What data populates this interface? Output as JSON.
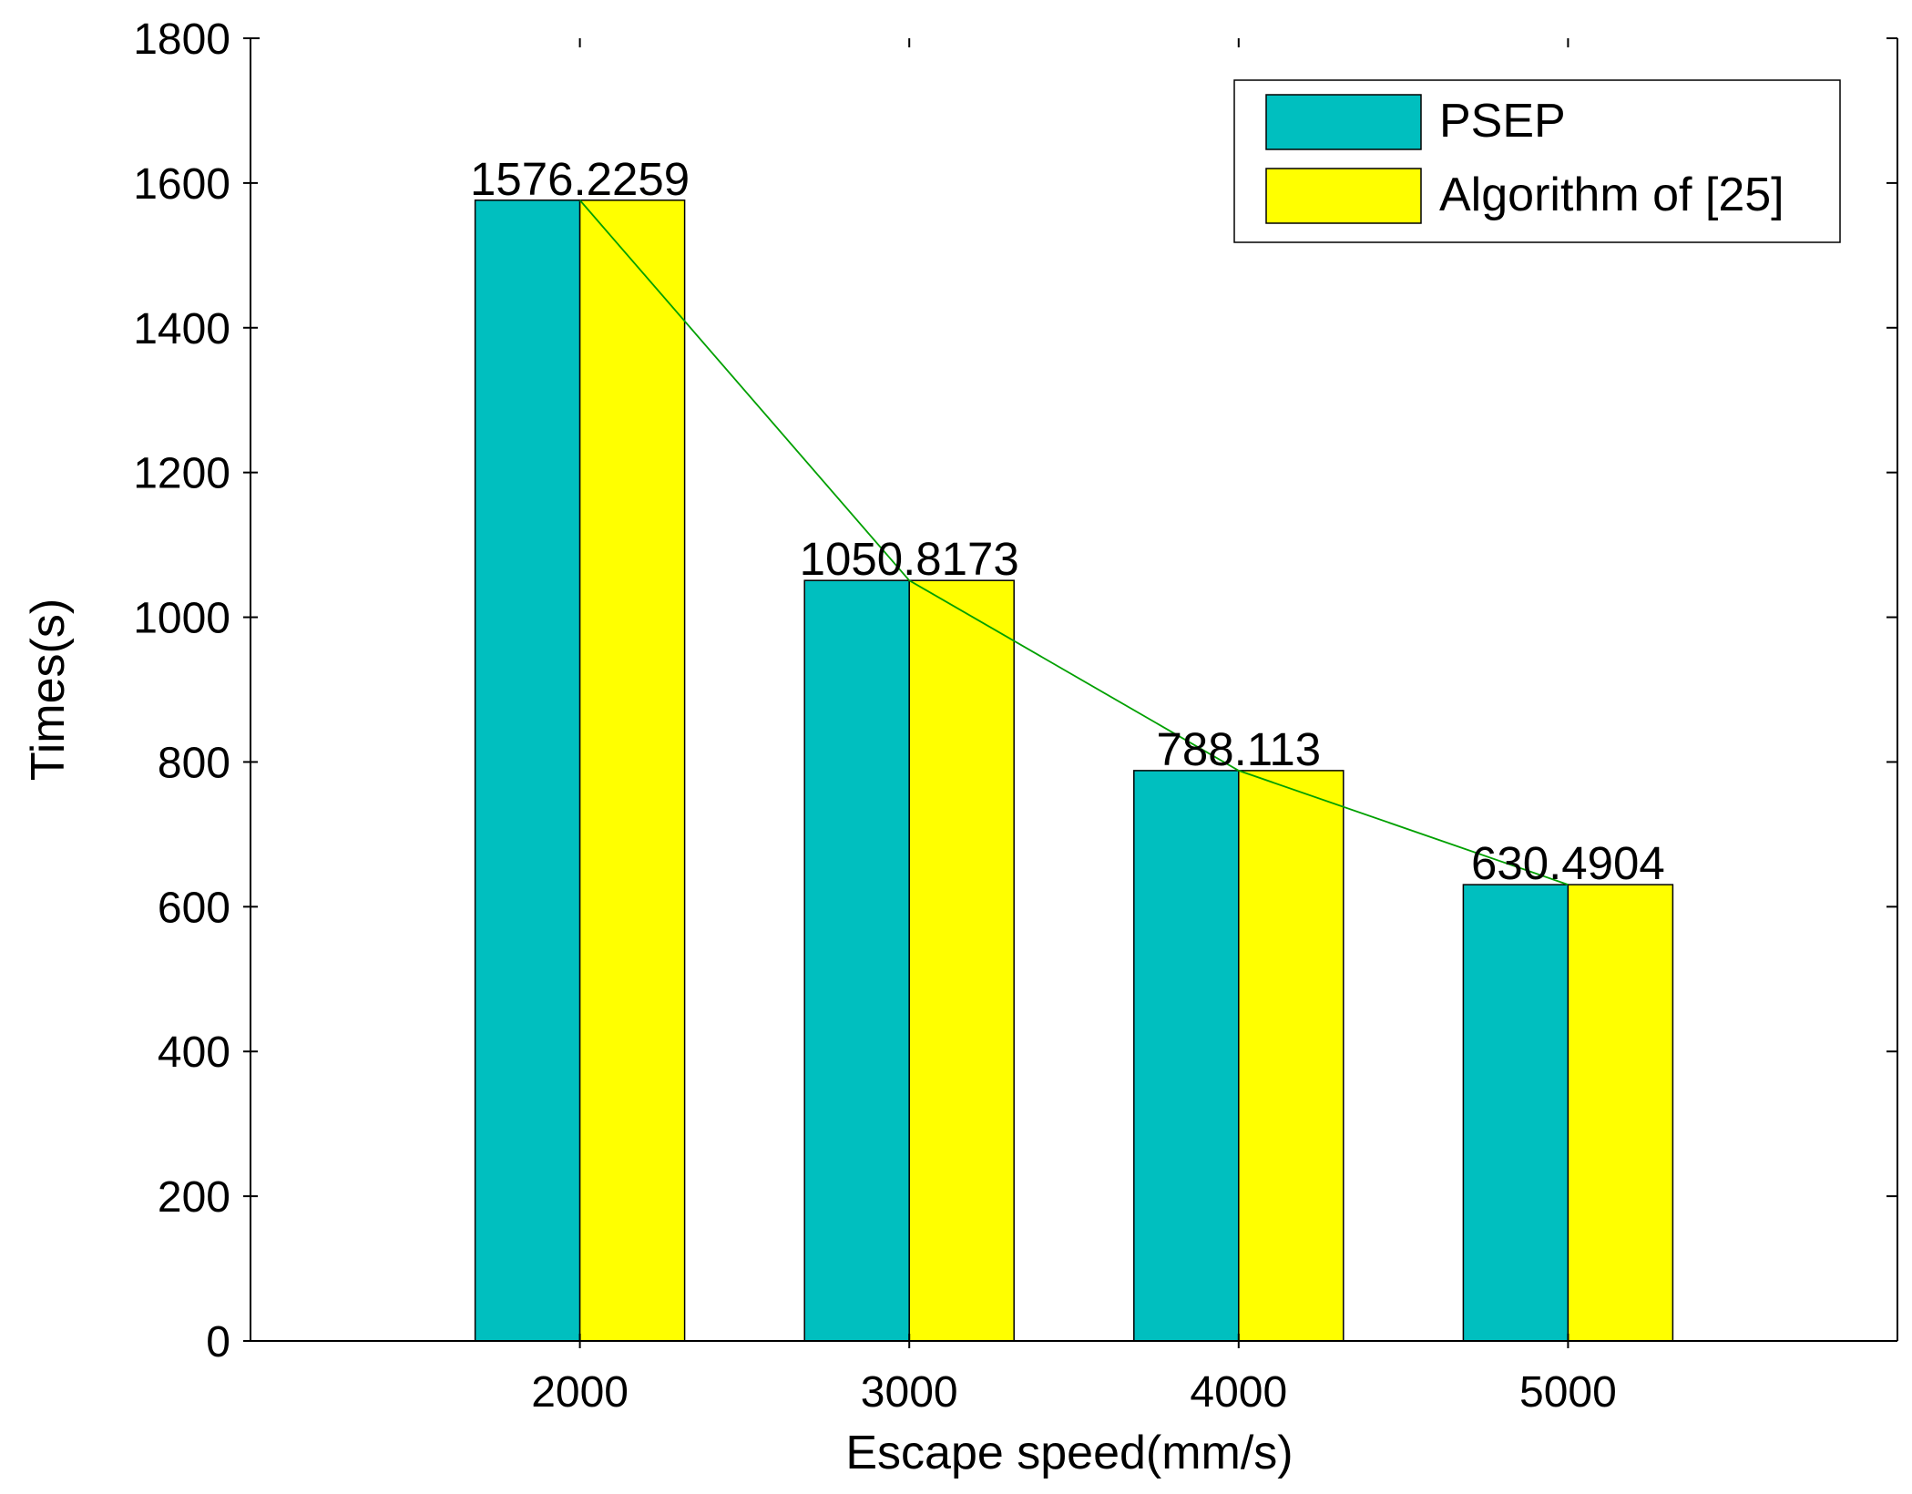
{
  "chart_data": {
    "type": "bar",
    "title": "",
    "xlabel": "Escape speed(mm/s)",
    "ylabel": "Times(s)",
    "categories": [
      "2000",
      "3000",
      "4000",
      "5000"
    ],
    "ylim": [
      0,
      1800
    ],
    "yticks": [
      0,
      200,
      400,
      600,
      800,
      1000,
      1200,
      1400,
      1600,
      1800
    ],
    "ytick_labels": [
      "0",
      "200",
      "400",
      "600",
      "800",
      "1000",
      "1200",
      "1400",
      "1600",
      "1800"
    ],
    "series": [
      {
        "name": "PSEP",
        "color": "#00BFBF",
        "values": [
          1576.2259,
          1050.8173,
          788.113,
          630.4904
        ]
      },
      {
        "name": "Algorithm of [25]",
        "color": "#FFFF00",
        "values": [
          1576.2259,
          1050.8173,
          788.113,
          630.4904
        ]
      }
    ],
    "data_labels": [
      "1576.2259",
      "1050.8173",
      "788.113",
      "630.4904"
    ],
    "trend_line": {
      "color": "#00A000",
      "values": [
        1576.2259,
        1050.8173,
        788.113,
        630.4904
      ]
    },
    "grid": false,
    "legend": "top-right"
  }
}
